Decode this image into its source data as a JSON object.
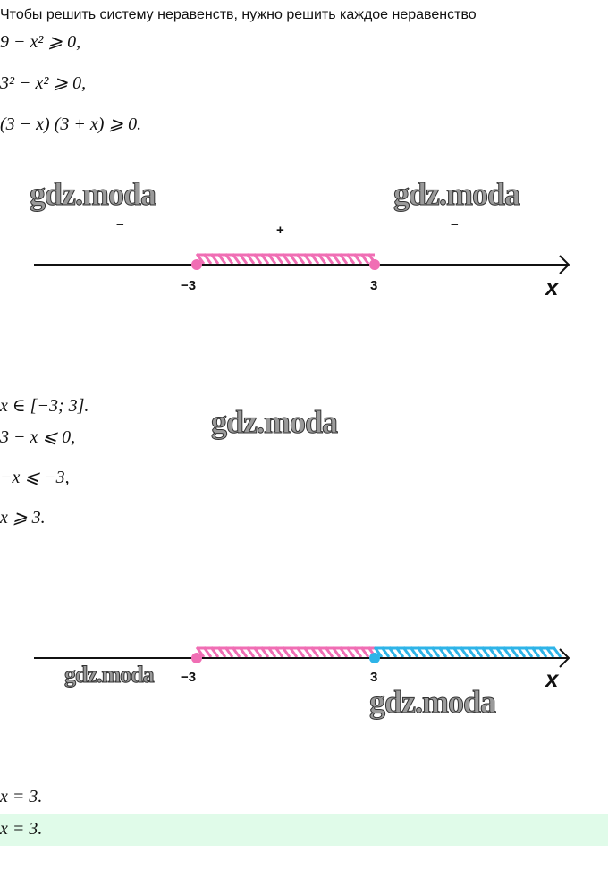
{
  "intro": "Чтобы решить систему неравенств, нужно решить каждое неравенство",
  "steps1": [
    "9 − x² ⩾ 0,",
    "3² − x² ⩾ 0,",
    "(3 − x) (3 + x) ⩾ 0."
  ],
  "diagram1": {
    "signs": [
      "−",
      "+",
      "−"
    ],
    "points": [
      "−3",
      "3"
    ],
    "axis": "x",
    "colors": {
      "shade": "#f06eb4",
      "axis": "#111111"
    }
  },
  "steps2": [
    "x ∈ [−3; 3].",
    "3 − x ⩽ 0,",
    "−x ⩽ −3,",
    "x ⩾ 3."
  ],
  "diagram2": {
    "points": [
      "−3",
      "3"
    ],
    "axis": "x",
    "colors": {
      "shade1": "#f06eb4",
      "shade2": "#2eb4e8"
    }
  },
  "result": "x = 3.",
  "answer": "x = 3.",
  "answer_bg": "#e0fbe9",
  "watermark": "gdz.moda"
}
